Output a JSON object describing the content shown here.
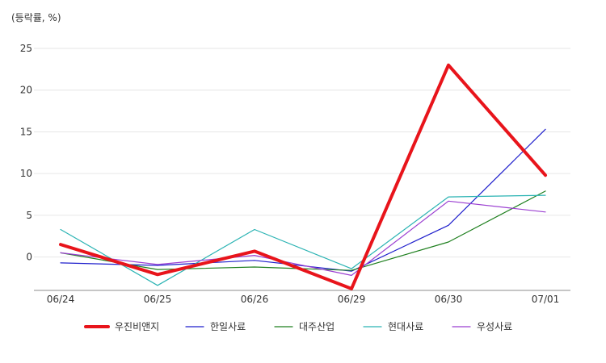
{
  "chart_data": {
    "type": "line",
    "unit_label": "(등락률, %)",
    "categories": [
      "06/24",
      "06/25",
      "06/26",
      "06/29",
      "06/30",
      "07/01"
    ],
    "y_ticks": [
      0,
      5,
      10,
      15,
      20,
      25
    ],
    "ylim": [
      -4,
      25
    ],
    "grid": true,
    "legend_position": "bottom",
    "series": [
      {
        "name": "우진비앤지",
        "color": "#e8141b",
        "emphasis": true,
        "values": [
          1.5,
          -2.1,
          0.7,
          -3.8,
          23.0,
          9.8
        ]
      },
      {
        "name": "한일사료",
        "color": "#1f1fcc",
        "emphasis": false,
        "values": [
          -0.7,
          -1.0,
          -0.4,
          -1.7,
          3.8,
          15.3
        ]
      },
      {
        "name": "대주산업",
        "color": "#1e7f1e",
        "emphasis": false,
        "values": [
          0.5,
          -1.5,
          -1.2,
          -1.6,
          1.8,
          7.9
        ]
      },
      {
        "name": "현대사료",
        "color": "#2ab3b3",
        "emphasis": false,
        "values": [
          3.3,
          -3.4,
          3.3,
          -1.4,
          7.2,
          7.4
        ]
      },
      {
        "name": "우성사료",
        "color": "#9b3fd1",
        "emphasis": false,
        "values": [
          0.5,
          -0.9,
          0.2,
          -2.2,
          6.7,
          5.4
        ]
      }
    ]
  }
}
